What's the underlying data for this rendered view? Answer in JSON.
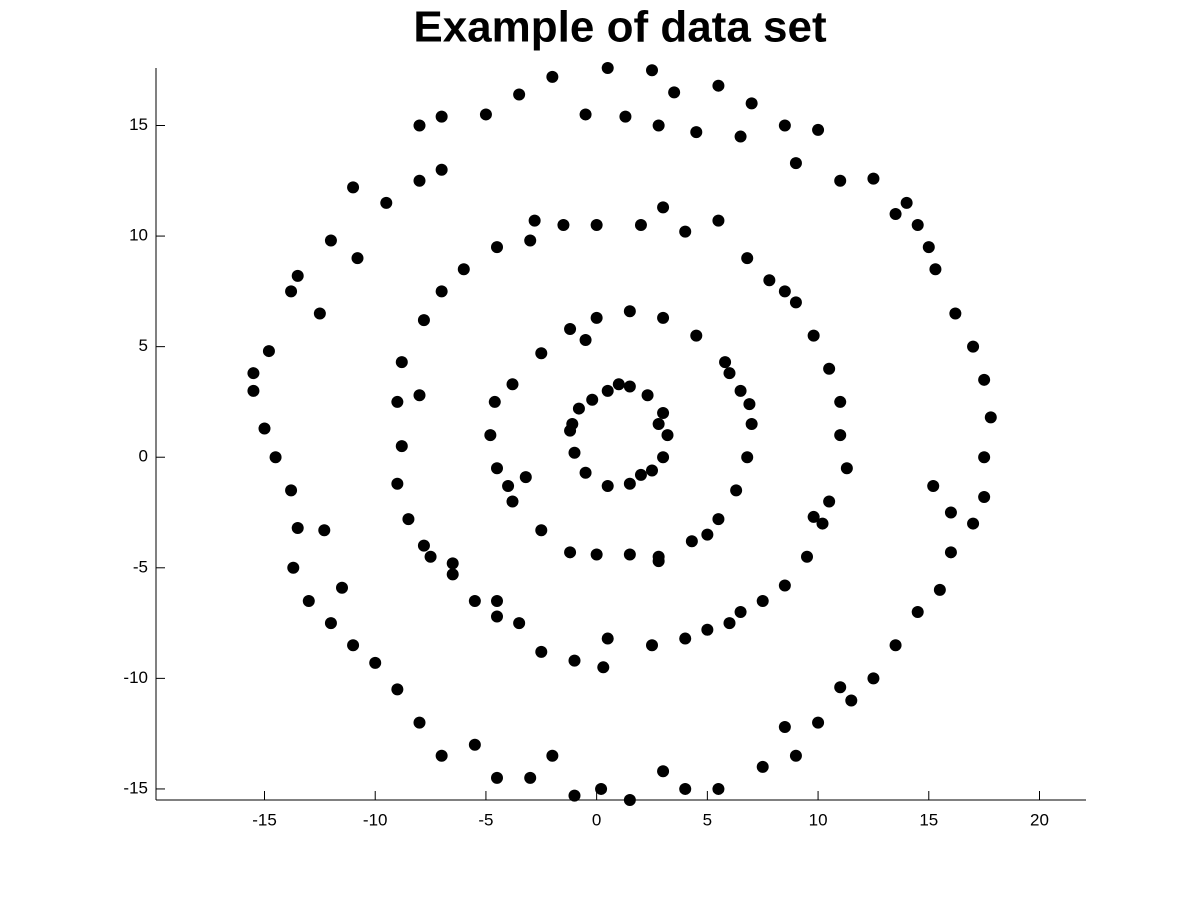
{
  "chart_data": {
    "type": "scatter",
    "title": "Example of data set",
    "color": "#000000",
    "xlim": [
      -19.9,
      22.1
    ],
    "ylim": [
      -15.5,
      17.6
    ],
    "xticks": [
      -15,
      -10,
      -5,
      0,
      5,
      10,
      15,
      20
    ],
    "yticks": [
      -15,
      -10,
      -5,
      0,
      5,
      10,
      15
    ],
    "x": [
      0.5,
      1.5,
      2.3,
      3,
      3.2,
      3,
      2.5,
      1.5,
      0.5,
      -0.5,
      -1,
      -1.2,
      -0.8,
      -0.2,
      1,
      2.8,
      2,
      -1.1,
      0,
      1.5,
      3,
      4.5,
      5.8,
      6.5,
      7,
      6.8,
      6.3,
      5.5,
      4.3,
      2.8,
      1.5,
      0,
      -1.2,
      -2.5,
      -3.8,
      -4.5,
      -4.8,
      -4.6,
      -3.8,
      -2.5,
      -1.2,
      5,
      6,
      -4,
      2.8,
      -0.5,
      -3.2,
      6.9,
      0,
      2,
      4,
      5.5,
      6.8,
      7.8,
      9,
      9.8,
      10.5,
      11,
      11,
      11.3,
      10.5,
      10.2,
      9.5,
      8.5,
      7.5,
      6,
      5,
      4,
      2.5,
      0.5,
      -1,
      0.3,
      -2.5,
      -3.5,
      -4.5,
      -5.5,
      -6.5,
      -7.5,
      -8.5,
      -9,
      -8.8,
      -9,
      -8.8,
      -7.8,
      -7,
      -6,
      -4.5,
      -3,
      -1.5,
      -2.8,
      3,
      8.5,
      9.8,
      -8,
      -7.8,
      6.5,
      -6.5,
      -4.5,
      0.5,
      2.5,
      3.5,
      5.5,
      7,
      8.5,
      10,
      11,
      12.5,
      13.5,
      14.5,
      15.3,
      16.2,
      17,
      17.5,
      17.8,
      17.5,
      17.5,
      17,
      16,
      15.5,
      14.5,
      13.5,
      12.5,
      11.5,
      10,
      9,
      7.5,
      5.5,
      4,
      3,
      1.5,
      0.2,
      -1,
      -2,
      -3,
      -4.5,
      -5.5,
      -7,
      -8,
      -9,
      -10,
      -11,
      -12,
      -13,
      -13.7,
      -13.5,
      -13.8,
      -14.5,
      -15,
      -15.5,
      -14.8,
      -13.8,
      -13.5,
      -12,
      -11,
      -9.5,
      -8,
      -7,
      -8,
      -7,
      -5,
      -3.5,
      -2,
      -0.5,
      1.3,
      2.8,
      4.5,
      6.5,
      9,
      14,
      15,
      -12.5,
      -10.8,
      -15.5,
      15.2,
      16,
      -12.3,
      -11.5,
      11,
      8.5
    ],
    "y": [
      3,
      3.2,
      2.8,
      2,
      1,
      0,
      -0.6,
      -1.2,
      -1.3,
      -0.7,
      0.2,
      1.2,
      2.2,
      2.6,
      3.3,
      1.5,
      -0.8,
      1.5,
      6.3,
      6.6,
      6.3,
      5.5,
      4.3,
      3,
      1.5,
      0,
      -1.5,
      -2.8,
      -3.8,
      -4.5,
      -4.4,
      -4.4,
      -4.3,
      -3.3,
      -2,
      -0.5,
      1,
      2.5,
      3.3,
      4.7,
      5.8,
      -3.5,
      3.8,
      -1.3,
      -4.7,
      5.3,
      -0.9,
      2.4,
      10.5,
      10.5,
      10.2,
      10.7,
      9,
      8,
      7,
      5.5,
      4,
      2.5,
      1,
      -0.5,
      -2,
      -3,
      -4.5,
      -5.8,
      -6.5,
      -7.5,
      -7.8,
      -8.2,
      -8.5,
      -8.2,
      -9.2,
      -9.5,
      -8.8,
      -7.5,
      -7.2,
      -6.5,
      -5.3,
      -4.5,
      -2.8,
      -1.2,
      0.5,
      2.5,
      4.3,
      6.2,
      7.5,
      8.5,
      9.5,
      9.8,
      10.5,
      10.7,
      11.3,
      7.5,
      -2.7,
      2.8,
      -4,
      -7,
      -4.8,
      -6.5,
      17.6,
      17.5,
      16.5,
      16.8,
      16,
      15,
      14.8,
      12.5,
      12.6,
      11,
      10.5,
      8.5,
      6.5,
      5,
      3.5,
      1.8,
      0,
      -1.8,
      -3,
      -4.3,
      -6,
      -7,
      -8.5,
      -10,
      -11,
      -12,
      -13.5,
      -14,
      -15,
      -15,
      -14.2,
      -15.5,
      -15,
      -15.3,
      -13.5,
      -14.5,
      -14.5,
      -13,
      -13.5,
      -12,
      -10.5,
      -9.3,
      -8.5,
      -7.5,
      -6.5,
      -5,
      -3.2,
      -1.5,
      0,
      1.3,
      3,
      4.8,
      7.5,
      8.2,
      9.8,
      12.2,
      11.5,
      12.5,
      13,
      15,
      15.4,
      15.5,
      16.4,
      17.2,
      15.5,
      15.4,
      15,
      14.7,
      14.5,
      13.3,
      11.5,
      9.5,
      6.5,
      9,
      3.8,
      -1.3,
      -2.5,
      -3.3,
      -5.9,
      -10.4,
      -12.2
    ]
  }
}
